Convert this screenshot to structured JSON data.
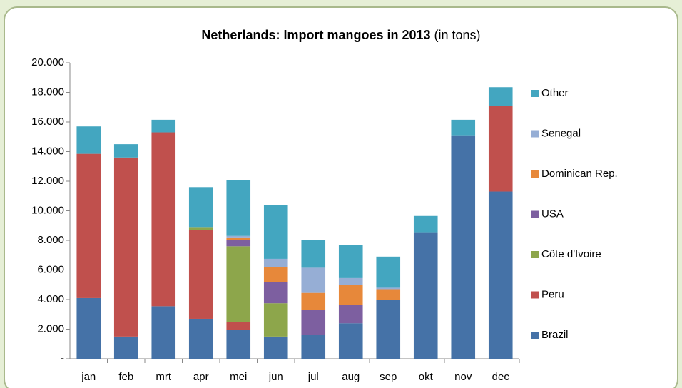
{
  "chart_data": {
    "type": "stacked_bar",
    "title": "Netherlands: Import mangoes in 2013",
    "subtitle": "(in tons)",
    "categories": [
      "jan",
      "feb",
      "mrt",
      "apr",
      "mei",
      "jun",
      "jul",
      "aug",
      "sep",
      "okt",
      "nov",
      "dec"
    ],
    "series": [
      {
        "name": "Brazil",
        "color": "#4572a7",
        "values": [
          4100,
          1500,
          3550,
          2700,
          1950,
          1500,
          1600,
          2400,
          4000,
          8550,
          15100,
          11300
        ]
      },
      {
        "name": "Peru",
        "color": "#c0504d",
        "values": [
          9750,
          12100,
          11750,
          6000,
          550,
          0,
          0,
          0,
          0,
          0,
          0,
          5800
        ]
      },
      {
        "name": "Côte d'Ivoire",
        "color": "#8da64b",
        "values": [
          0,
          0,
          0,
          200,
          5100,
          2250,
          0,
          0,
          0,
          0,
          0,
          0
        ]
      },
      {
        "name": "USA",
        "color": "#7d5fa0",
        "values": [
          0,
          0,
          0,
          0,
          400,
          1450,
          1700,
          1250,
          0,
          0,
          0,
          0
        ]
      },
      {
        "name": "Dominican Rep.",
        "color": "#e7883a",
        "values": [
          0,
          0,
          0,
          0,
          200,
          1000,
          1150,
          1350,
          700,
          0,
          0,
          0
        ]
      },
      {
        "name": "Senegal",
        "color": "#96aed5",
        "values": [
          0,
          0,
          0,
          0,
          100,
          550,
          1700,
          450,
          100,
          0,
          0,
          0
        ]
      },
      {
        "name": "Other",
        "color": "#43a6c0",
        "values": [
          1850,
          900,
          850,
          2700,
          3750,
          3650,
          1850,
          2250,
          2100,
          1100,
          1050,
          1250
        ]
      }
    ],
    "ylim": [
      0,
      20000
    ],
    "yticks": [
      {
        "value": 0,
        "label": "-"
      },
      {
        "value": 2000,
        "label": "2.000"
      },
      {
        "value": 4000,
        "label": "4.000"
      },
      {
        "value": 6000,
        "label": "6.000"
      },
      {
        "value": 8000,
        "label": "8.000"
      },
      {
        "value": 10000,
        "label": "10.000"
      },
      {
        "value": 12000,
        "label": "12.000"
      },
      {
        "value": 14000,
        "label": "14.000"
      },
      {
        "value": 16000,
        "label": "16.000"
      },
      {
        "value": 18000,
        "label": "18.000"
      },
      {
        "value": 20000,
        "label": "20.000"
      }
    ],
    "legend": "right"
  }
}
